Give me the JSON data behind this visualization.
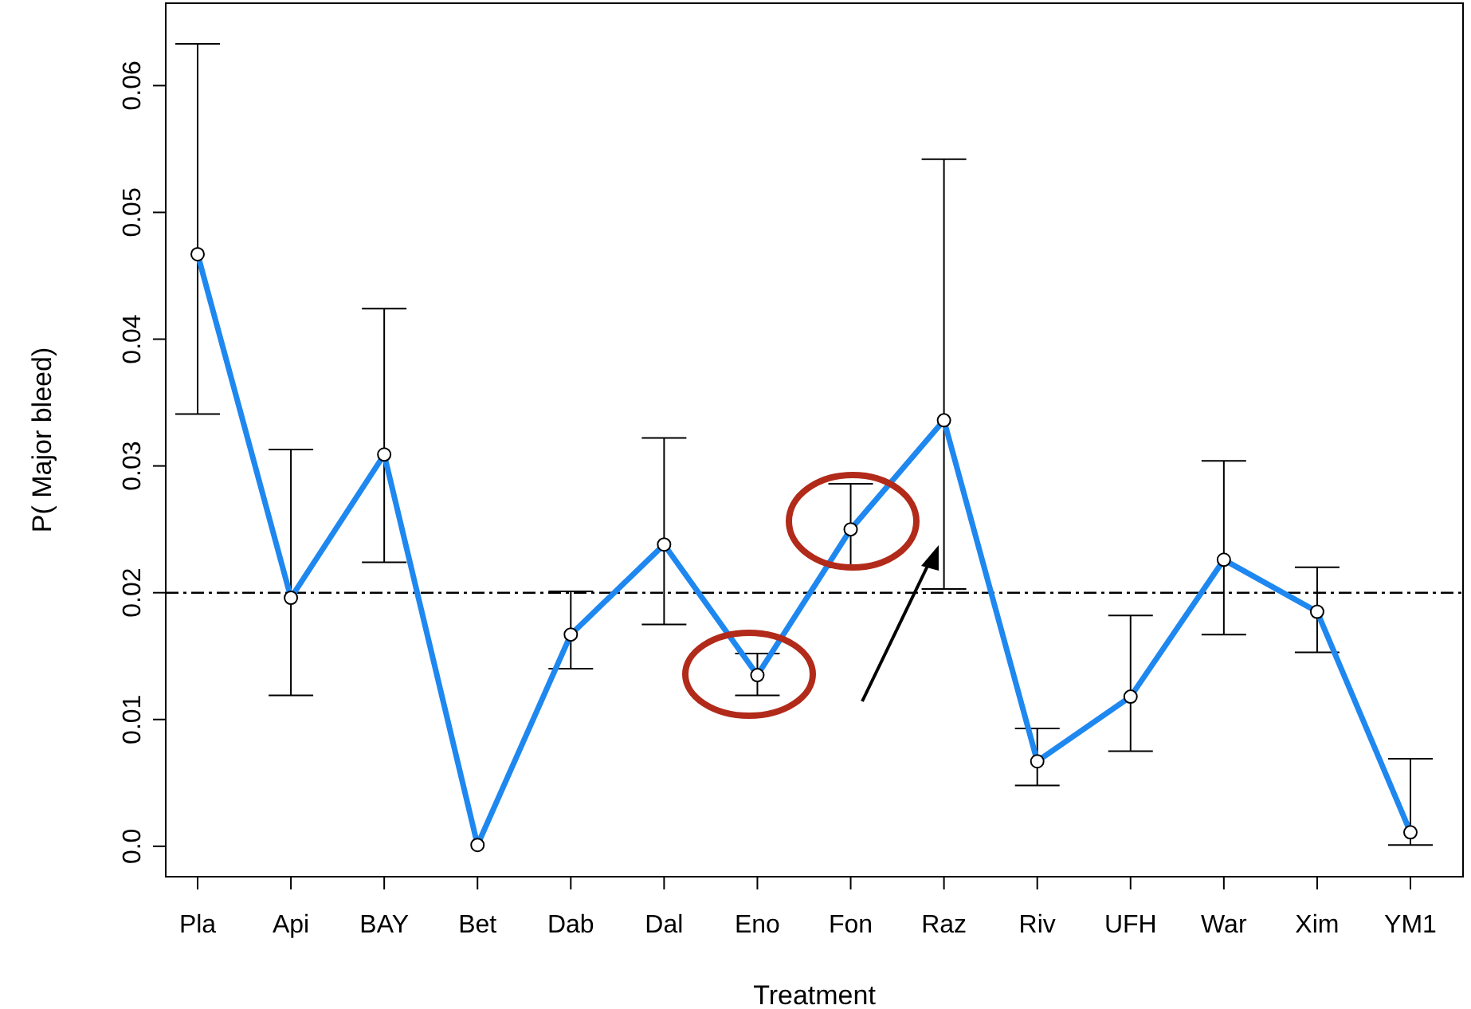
{
  "chart_data": {
    "type": "line",
    "xlabel": "Treatment",
    "ylabel": "P( Major bleed)",
    "categories": [
      "Pla",
      "Api",
      "BAY",
      "Bet",
      "Dab",
      "Dal",
      "Eno",
      "Fon",
      "Raz",
      "Riv",
      "UFH",
      "War",
      "Xim",
      "YM1"
    ],
    "series": [
      {
        "color": "#1e88f0",
        "values": [
          0.0467,
          0.0196,
          0.0309,
          0.0001,
          0.0167,
          0.0238,
          0.0135,
          0.025,
          0.0336,
          0.0067,
          0.0118,
          0.0226,
          0.0185,
          0.0011
        ],
        "errors": [
          [
            0.0341,
            0.0633
          ],
          [
            0.0119,
            0.0313
          ],
          [
            0.0224,
            0.0424
          ],
          null,
          [
            0.014,
            0.0201
          ],
          [
            0.0175,
            0.0322
          ],
          [
            0.0119,
            0.0152
          ],
          [
            0.022,
            0.0286
          ],
          [
            0.0203,
            0.0542
          ],
          [
            0.0048,
            0.0093
          ],
          [
            0.0075,
            0.0182
          ],
          [
            0.0167,
            0.0304
          ],
          [
            0.0153,
            0.022
          ],
          [
            0.0001,
            0.0069
          ]
        ]
      }
    ],
    "ylim": [
      -0.0024,
      0.0665
    ],
    "yticks": [
      {
        "value": 0,
        "label": "0.0"
      },
      0.01,
      0.02,
      0.03,
      0.04,
      0.05,
      0.06
    ],
    "ref_lines": [
      {
        "axis": "y",
        "value": 0.02,
        "line_style": "dashdot",
        "color": "#000000"
      }
    ],
    "marker": "circle",
    "line_style": "solid",
    "grid": false
  }
}
